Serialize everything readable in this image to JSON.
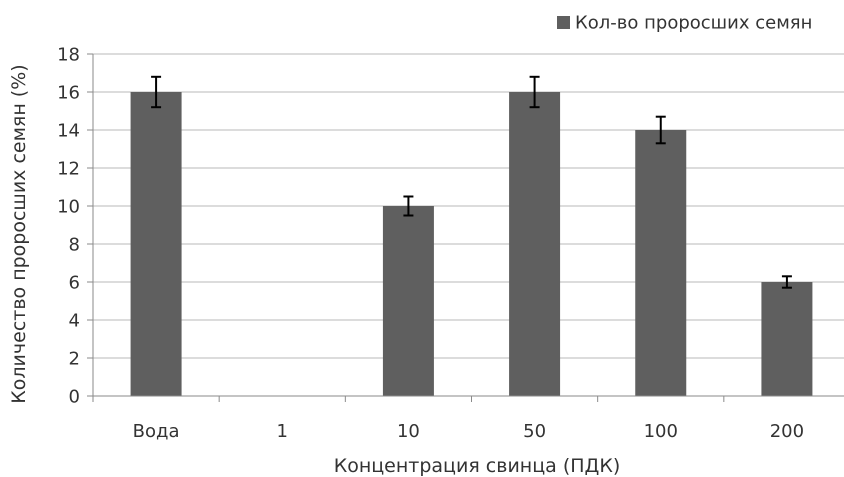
{
  "chart_data": {
    "type": "bar",
    "xlabel": "Концентрация свинца (ПДК)",
    "ylabel": "Количество проросших семян (%)",
    "categories": [
      "Вода",
      "1",
      "10",
      "50",
      "100",
      "200"
    ],
    "series": [
      {
        "name": "Кол-во проросших семян",
        "values": [
          16,
          0,
          10,
          16,
          14,
          6
        ],
        "errors": [
          0.8,
          0,
          0.5,
          0.8,
          0.7,
          0.3
        ],
        "color": "#5f5f5f"
      }
    ],
    "ylim": [
      0,
      18
    ],
    "yticks": [
      "0",
      "2",
      "4",
      "6",
      "8",
      "10",
      "12",
      "14",
      "16",
      "18"
    ],
    "grid": true,
    "legend": "top-right"
  }
}
